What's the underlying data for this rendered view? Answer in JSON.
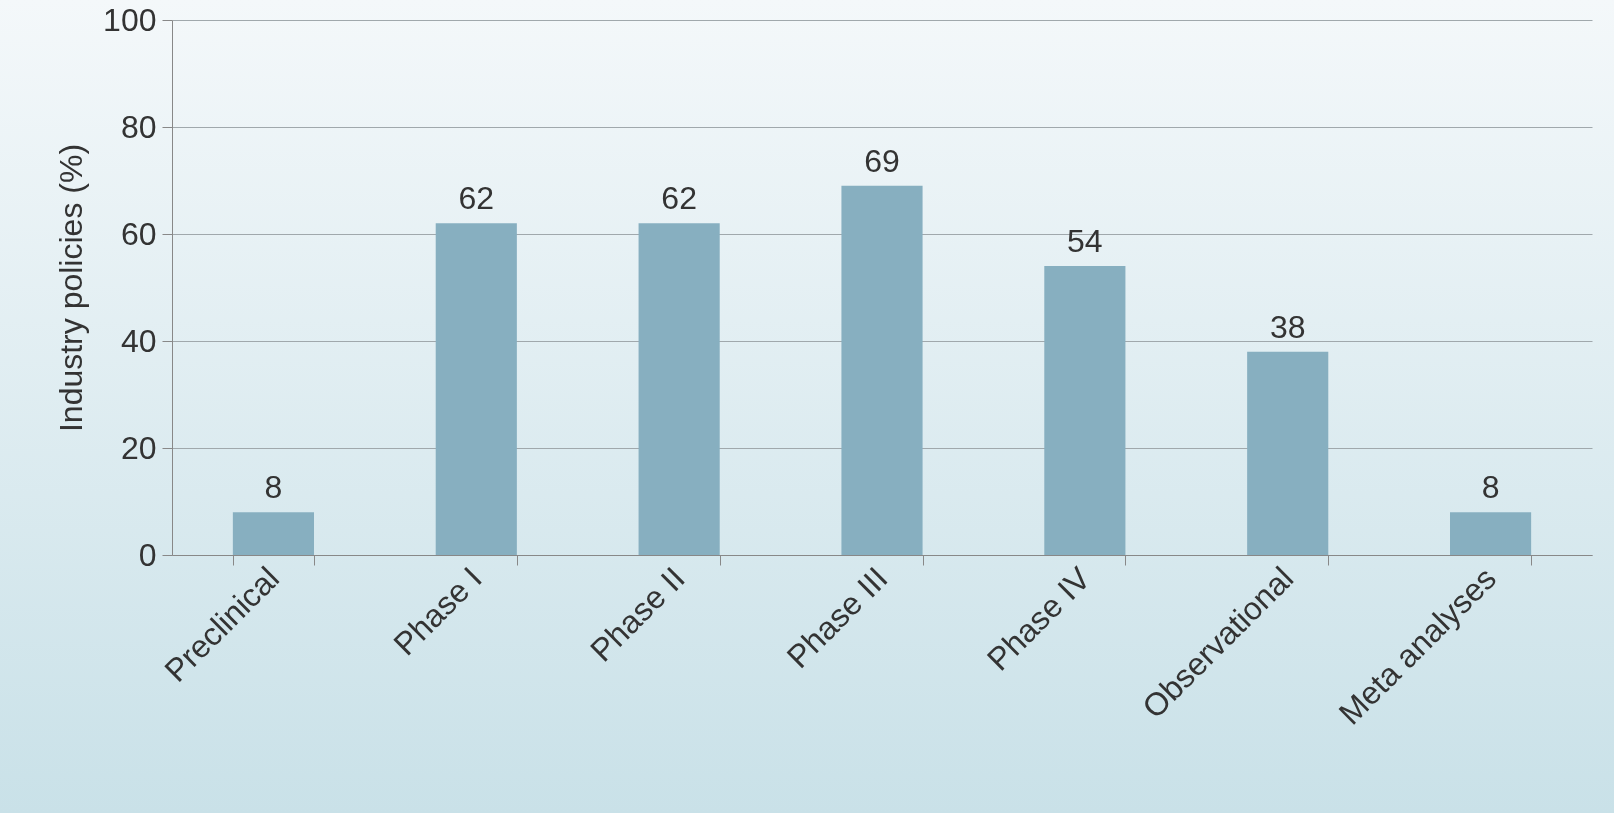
{
  "chart_data": {
    "type": "bar",
    "ylabel": "Industry policies (%)",
    "categories": [
      "Preclinical",
      "Phase I",
      "Phase II",
      "Phase III",
      "Phase IV",
      "Observational",
      "Meta analyses"
    ],
    "values": [
      8,
      62,
      62,
      69,
      54,
      38,
      8
    ],
    "color": "#87afc0",
    "ylim": [
      0,
      100
    ],
    "yticks": [
      0,
      20,
      40,
      60,
      80,
      100
    ],
    "grid": "y",
    "data_labels": true
  }
}
